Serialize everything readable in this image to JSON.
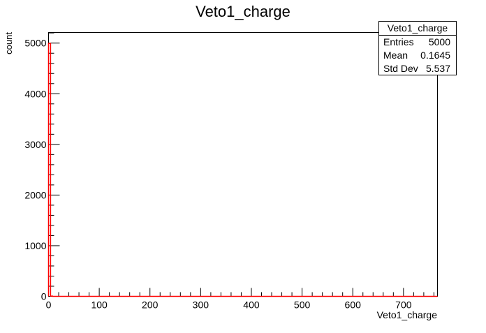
{
  "chart_data": {
    "type": "bar",
    "title": "Veto1_charge",
    "xlabel": "Veto1_charge",
    "ylabel": "count",
    "xlim": [
      0,
      767
    ],
    "ylim": [
      0,
      5210
    ],
    "xticks": [
      0,
      100,
      200,
      300,
      400,
      500,
      600,
      700
    ],
    "yticks": [
      0,
      1000,
      2000,
      3000,
      4000,
      5000
    ],
    "bin_width": 4,
    "bins": [
      {
        "x0": 0,
        "x1": 4,
        "value": 4995
      },
      {
        "x0": 4,
        "x1": 8,
        "value": 5
      }
    ],
    "grid": false,
    "line_color": "#ff0000",
    "legend": "top-right",
    "stats": {
      "title": "Veto1_charge",
      "rows": [
        {
          "label": "Entries",
          "value": "5000"
        },
        {
          "label": "Mean",
          "value": "0.1645"
        },
        {
          "label": "Std Dev",
          "value": "5.537"
        }
      ]
    }
  }
}
